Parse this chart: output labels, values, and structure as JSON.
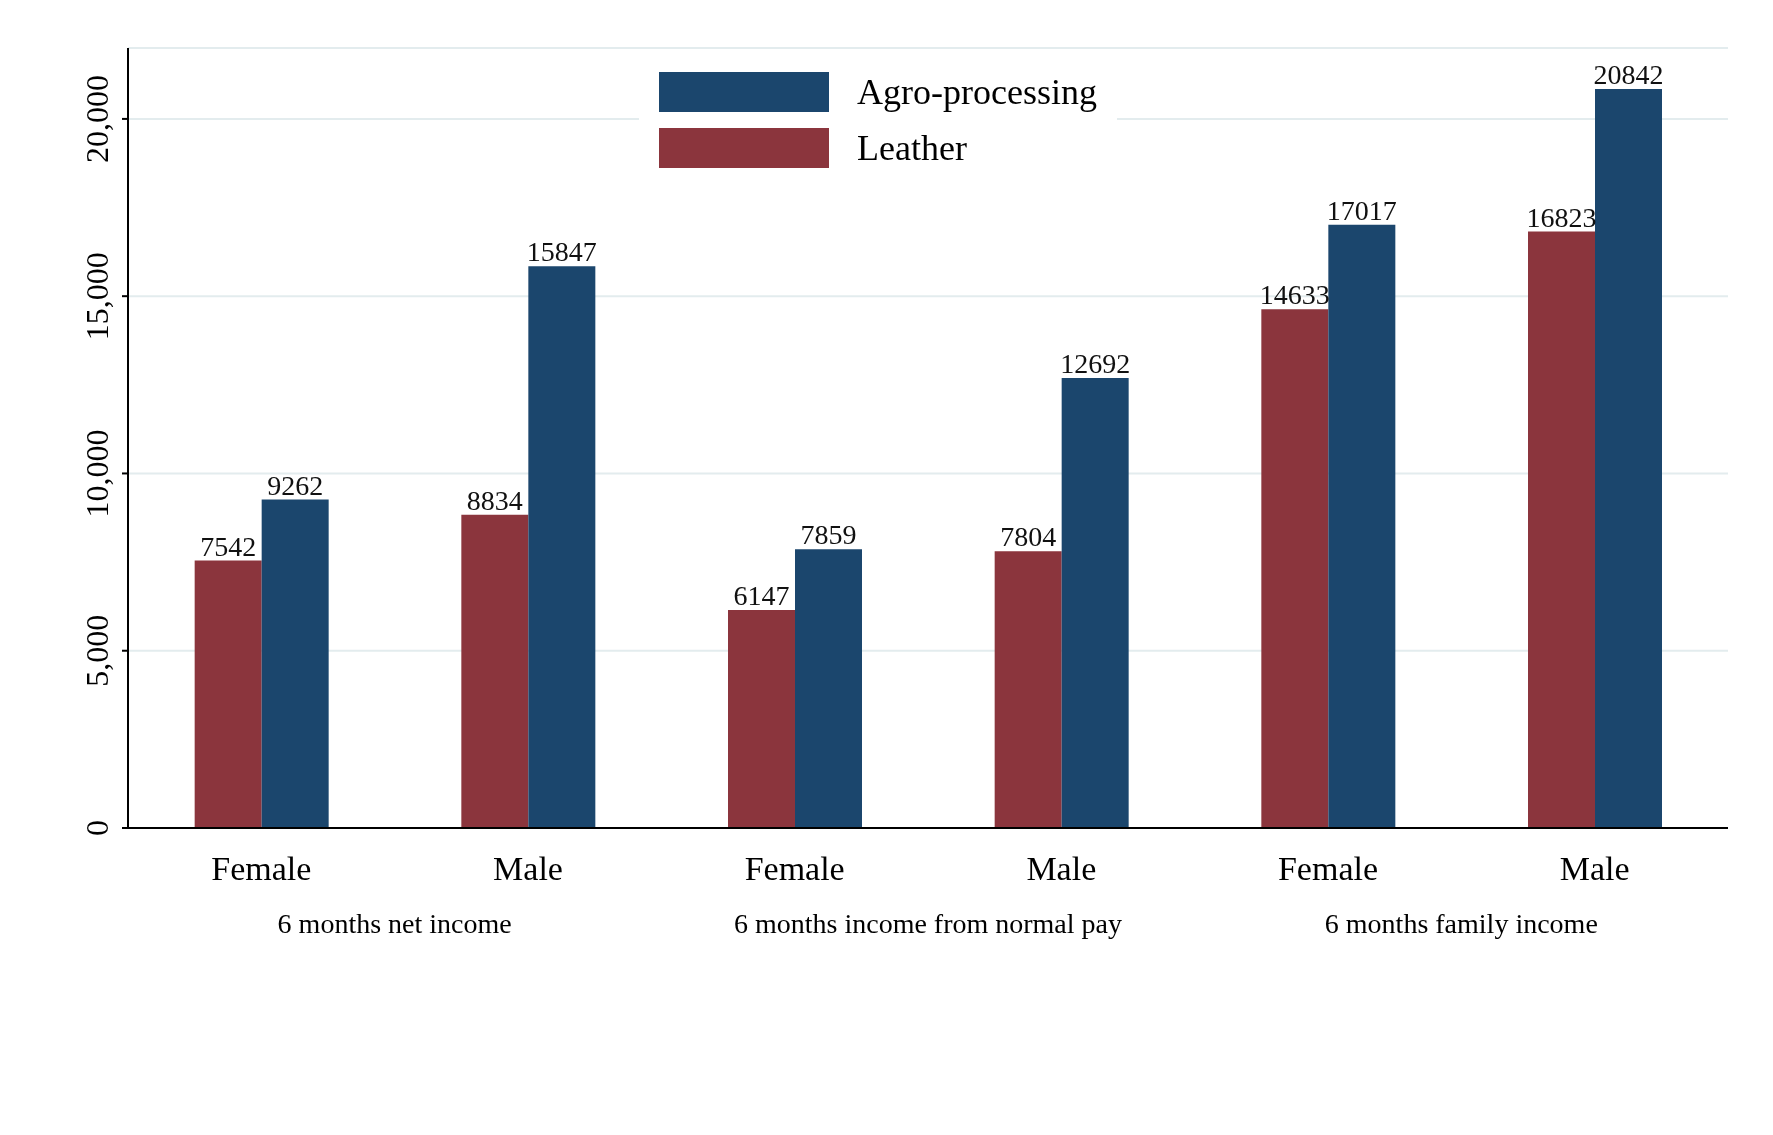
{
  "chart_data": {
    "type": "bar",
    "categories": [
      "Female",
      "Male",
      "Female",
      "Male",
      "Female",
      "Male"
    ],
    "series": [
      {
        "name": "Leather",
        "color": "#8b353d",
        "values": [
          7542,
          8834,
          6147,
          7804,
          14633,
          16823
        ]
      },
      {
        "name": "Agro-processing",
        "color": "#1b466d",
        "values": [
          9262,
          15847,
          7859,
          12692,
          17017,
          20842
        ]
      }
    ],
    "ylim": [
      0,
      22000
    ],
    "yticks": [
      0,
      {
        "value": 5000,
        "label": "5,000"
      },
      {
        "value": 10000,
        "label": "10,000"
      },
      {
        "value": 15000,
        "label": "15,000"
      },
      {
        "value": 20000,
        "label": "20,000"
      }
    ],
    "grid": "y",
    "legend": "top",
    "data_labels": true,
    "annotations": [
      "6 months net income",
      "6 months income from normal pay",
      "6 months family income"
    ]
  }
}
